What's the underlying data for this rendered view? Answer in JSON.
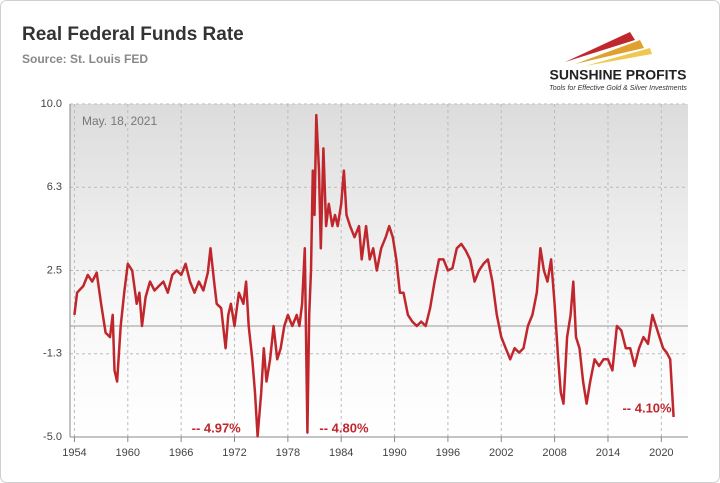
{
  "chart_data": {
    "type": "line",
    "title": "Real Federal Funds Rate",
    "subtitle": "Source: St. Louis FED",
    "logo": "SUNSHINE PROFITS",
    "logo_tagline": "Tools for Effective Gold & Silver Investments",
    "date_note": "May. 18, 2021",
    "annotations": [
      {
        "text": "-- 4.97%",
        "x": 1974.6,
        "y": -4.97
      },
      {
        "text": "-- 4.80%",
        "x": 1980.2,
        "y": -4.8
      },
      {
        "text": "-- 4.10%",
        "x": 2021.38,
        "y": -4.1
      }
    ],
    "xlim": [
      1953.5,
      2023
    ],
    "xticks": [
      1954,
      1960,
      1966,
      1972,
      1978,
      1984,
      1990,
      1996,
      2002,
      2008,
      2014,
      2020
    ],
    "ylim": [
      -5,
      10
    ],
    "yticks": [
      {
        "value": -5,
        "label": "-5.0"
      },
      {
        "value": -1.25,
        "label": "-1.3"
      },
      {
        "value": 2.5,
        "label": "2.5"
      },
      {
        "value": 6.25,
        "label": "6.3"
      },
      {
        "value": 10,
        "label": "10.0"
      }
    ],
    "grid": true,
    "series": [
      {
        "color": "#c0272d",
        "x": [
          1954.0,
          1954.3,
          1955.0,
          1955.5,
          1956.0,
          1956.5,
          1957.0,
          1957.5,
          1958.0,
          1958.3,
          1958.5,
          1958.8,
          1959.2,
          1959.6,
          1960.0,
          1960.5,
          1961.0,
          1961.3,
          1961.6,
          1962.0,
          1962.5,
          1963.0,
          1963.5,
          1964.0,
          1964.5,
          1965.0,
          1965.5,
          1966.0,
          1966.5,
          1967.0,
          1967.5,
          1968.0,
          1968.5,
          1969.0,
          1969.3,
          1969.7,
          1970.0,
          1970.5,
          1971.0,
          1971.3,
          1971.6,
          1972.0,
          1972.5,
          1973.0,
          1973.3,
          1973.6,
          1974.0,
          1974.3,
          1974.6,
          1975.0,
          1975.3,
          1975.6,
          1976.0,
          1976.4,
          1976.8,
          1977.2,
          1977.6,
          1978.0,
          1978.5,
          1979.0,
          1979.3,
          1979.6,
          1979.9,
          1980.2,
          1980.4,
          1980.6,
          1980.8,
          1981.0,
          1981.2,
          1981.5,
          1981.7,
          1982.0,
          1982.3,
          1982.6,
          1983.0,
          1983.3,
          1983.6,
          1984.0,
          1984.3,
          1984.6,
          1985.0,
          1985.5,
          1986.0,
          1986.3,
          1986.8,
          1987.2,
          1987.6,
          1988.0,
          1988.5,
          1989.0,
          1989.4,
          1989.8,
          1990.2,
          1990.6,
          1991.0,
          1991.5,
          1992.0,
          1992.5,
          1993.0,
          1993.5,
          1994.0,
          1994.5,
          1995.0,
          1995.5,
          1996.0,
          1996.5,
          1997.0,
          1997.5,
          1998.0,
          1998.5,
          1999.0,
          1999.5,
          2000.0,
          2000.5,
          2001.0,
          2001.5,
          2002.0,
          2002.5,
          2003.0,
          2003.5,
          2004.0,
          2004.5,
          2005.0,
          2005.5,
          2006.0,
          2006.4,
          2006.8,
          2007.2,
          2007.6,
          2008.0,
          2008.4,
          2008.7,
          2009.0,
          2009.4,
          2009.8,
          2010.1,
          2010.4,
          2010.8,
          2011.2,
          2011.6,
          2012.0,
          2012.5,
          2013.0,
          2013.5,
          2014.0,
          2014.5,
          2015.0,
          2015.5,
          2016.0,
          2016.5,
          2017.0,
          2017.5,
          2018.0,
          2018.5,
          2019.0,
          2019.4,
          2019.8,
          2020.2,
          2020.6,
          2021.0,
          2021.38
        ],
        "values": [
          0.5,
          1.5,
          1.8,
          2.3,
          2.0,
          2.4,
          1.0,
          -0.3,
          -0.5,
          0.5,
          -2.0,
          -2.5,
          0.0,
          1.5,
          2.8,
          2.5,
          1.0,
          1.5,
          0.0,
          1.3,
          2.0,
          1.6,
          1.8,
          2.0,
          1.5,
          2.3,
          2.5,
          2.3,
          2.8,
          2.0,
          1.5,
          2.0,
          1.6,
          2.4,
          3.5,
          2.0,
          1.0,
          0.8,
          -1.0,
          0.5,
          1.0,
          0.0,
          1.5,
          1.0,
          2.0,
          0.0,
          -1.5,
          -3.0,
          -4.97,
          -3.0,
          -1.0,
          -2.5,
          -1.5,
          0.0,
          -1.5,
          -1.0,
          0.0,
          0.5,
          0.0,
          0.5,
          0.0,
          1.0,
          3.5,
          -4.8,
          0.5,
          2.5,
          7.0,
          5.0,
          9.5,
          7.0,
          3.5,
          8.0,
          4.5,
          5.5,
          4.5,
          5.0,
          4.5,
          5.5,
          7.0,
          5.0,
          4.5,
          4.0,
          4.5,
          3.0,
          4.5,
          3.0,
          3.5,
          2.5,
          3.5,
          4.0,
          4.5,
          4.0,
          3.0,
          1.5,
          1.5,
          0.5,
          0.2,
          0.0,
          0.2,
          0.0,
          0.8,
          2.0,
          3.0,
          3.0,
          2.5,
          2.6,
          3.5,
          3.7,
          3.4,
          3.0,
          2.0,
          2.5,
          2.8,
          3.0,
          2.0,
          0.5,
          -0.5,
          -1.0,
          -1.5,
          -1.0,
          -1.2,
          -1.0,
          0.0,
          0.5,
          1.5,
          3.5,
          2.5,
          2.0,
          3.0,
          1.0,
          -1.5,
          -3.0,
          -3.5,
          -0.5,
          0.5,
          2.0,
          -0.5,
          -1.0,
          -2.5,
          -3.5,
          -2.5,
          -1.5,
          -1.8,
          -1.5,
          -1.5,
          -2.0,
          0.0,
          -0.2,
          -1.0,
          -1.0,
          -1.8,
          -1.0,
          -0.5,
          -0.8,
          0.5,
          0.0,
          -0.5,
          -1.0,
          -1.2,
          -1.5,
          -4.1
        ]
      }
    ]
  }
}
